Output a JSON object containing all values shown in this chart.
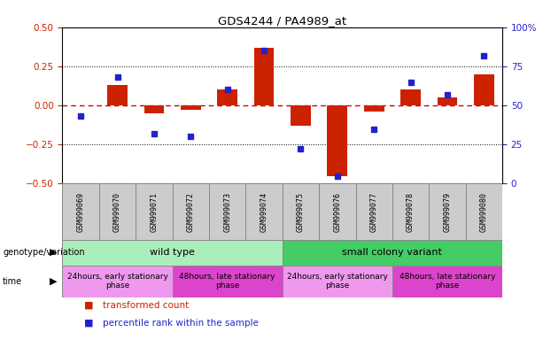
{
  "title": "GDS4244 / PA4989_at",
  "samples": [
    "GSM999069",
    "GSM999070",
    "GSM999071",
    "GSM999072",
    "GSM999073",
    "GSM999074",
    "GSM999075",
    "GSM999076",
    "GSM999077",
    "GSM999078",
    "GSM999079",
    "GSM999080"
  ],
  "transformed_count": [
    0.0,
    0.13,
    -0.05,
    -0.03,
    0.1,
    0.37,
    -0.13,
    -0.45,
    -0.04,
    0.1,
    0.05,
    0.2
  ],
  "percentile_rank": [
    43,
    68,
    32,
    30,
    60,
    85,
    22,
    5,
    35,
    65,
    57,
    82
  ],
  "ylim_left": [
    -0.5,
    0.5
  ],
  "ylim_right": [
    0,
    100
  ],
  "yticks_left": [
    -0.5,
    -0.25,
    0.0,
    0.25,
    0.5
  ],
  "yticks_right": [
    0,
    25,
    50,
    75,
    100
  ],
  "bar_color": "#cc2200",
  "dot_color": "#2222cc",
  "zero_line_color": "#cc0000",
  "dotted_line_color": "#000000",
  "background_plot": "#ffffff",
  "genotype_row": {
    "label": "genotype/variation",
    "groups": [
      {
        "name": "wild type",
        "start": 0,
        "end": 5,
        "color": "#aaeebb"
      },
      {
        "name": "small colony variant",
        "start": 6,
        "end": 11,
        "color": "#44cc66"
      }
    ]
  },
  "time_row": {
    "label": "time",
    "groups": [
      {
        "name": "24hours, early stationary\nphase",
        "start": 0,
        "end": 2,
        "color": "#ee99ee"
      },
      {
        "name": "48hours, late stationary\nphase",
        "start": 3,
        "end": 5,
        "color": "#dd44cc"
      },
      {
        "name": "24hours, early stationary\nphase",
        "start": 6,
        "end": 8,
        "color": "#ee99ee"
      },
      {
        "name": "48hours, late stationary\nphase",
        "start": 9,
        "end": 11,
        "color": "#dd44cc"
      }
    ]
  },
  "legend_items": [
    {
      "label": "transformed count",
      "color": "#cc2200"
    },
    {
      "label": "percentile rank within the sample",
      "color": "#2222cc"
    }
  ],
  "sample_bg": "#cccccc"
}
